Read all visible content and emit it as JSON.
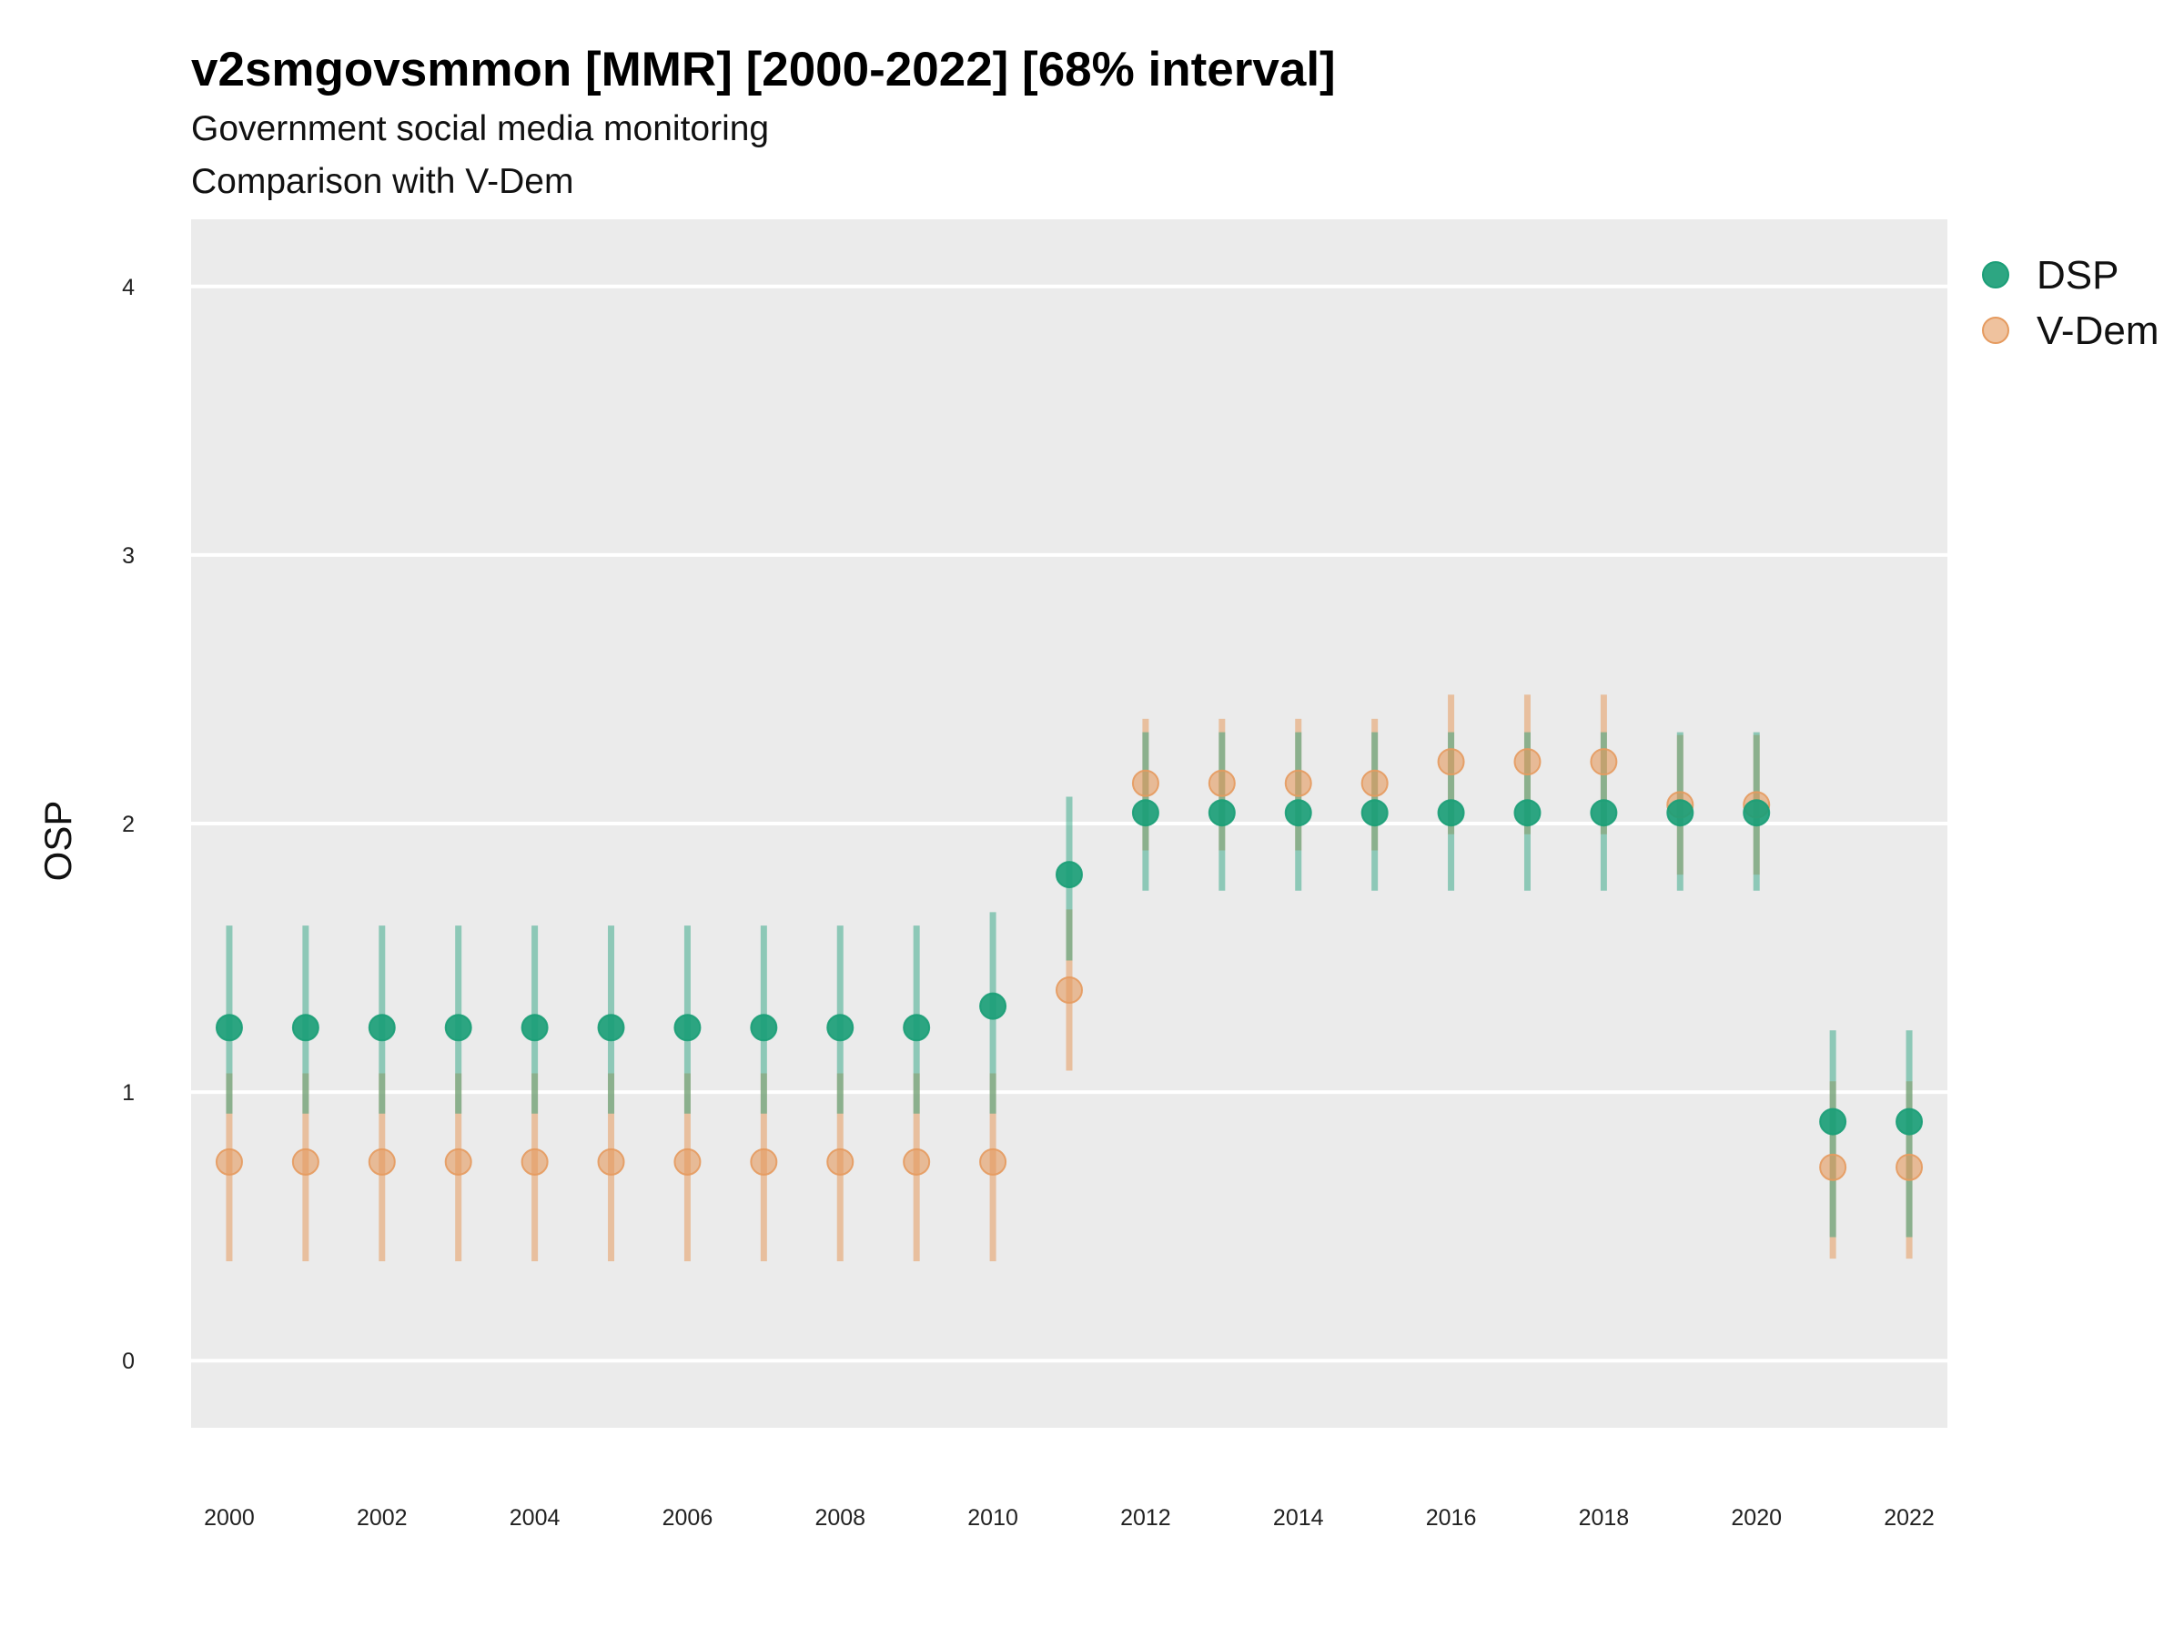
{
  "chart_data": {
    "type": "scatter",
    "title": "v2smgovsmmon [MMR] [2000-2022] [68% interval]",
    "subtitle_lines": [
      "Government social media monitoring",
      "Comparison with V-Dem"
    ],
    "ylabel": "OSP",
    "xlabel": "",
    "x_ticks": [
      "2000",
      "2002",
      "2004",
      "2006",
      "2008",
      "2010",
      "2012",
      "2014",
      "2016",
      "2018",
      "2020",
      "2022"
    ],
    "y_ticks": [
      "0",
      "1",
      "2",
      "3",
      "4"
    ],
    "xlim": [
      1999.5,
      2022.5
    ],
    "ylim": [
      -0.25,
      4.25
    ],
    "grid": true,
    "legend_position": "right",
    "x": [
      2000,
      2001,
      2002,
      2003,
      2004,
      2005,
      2006,
      2007,
      2008,
      2009,
      2010,
      2011,
      2012,
      2013,
      2014,
      2015,
      2016,
      2017,
      2018,
      2019,
      2020,
      2021,
      2022
    ],
    "series": [
      {
        "name": "DSP",
        "color": "#1b9e77",
        "values": [
          1.24,
          1.24,
          1.24,
          1.24,
          1.24,
          1.24,
          1.24,
          1.24,
          1.24,
          1.24,
          1.32,
          1.81,
          2.04,
          2.04,
          2.04,
          2.04,
          2.04,
          2.04,
          2.04,
          2.04,
          2.04,
          0.89,
          0.89
        ],
        "lower": [
          0.92,
          0.92,
          0.92,
          0.92,
          0.92,
          0.92,
          0.92,
          0.92,
          0.92,
          0.92,
          0.92,
          1.49,
          1.75,
          1.75,
          1.75,
          1.75,
          1.75,
          1.75,
          1.75,
          1.75,
          1.75,
          0.46,
          0.46
        ],
        "upper": [
          1.62,
          1.62,
          1.62,
          1.62,
          1.62,
          1.62,
          1.62,
          1.62,
          1.62,
          1.62,
          1.67,
          2.1,
          2.34,
          2.34,
          2.34,
          2.34,
          2.34,
          2.34,
          2.34,
          2.34,
          2.34,
          1.23,
          1.23
        ]
      },
      {
        "name": "V-Dem",
        "color": "#e59a5e",
        "values": [
          0.74,
          0.74,
          0.74,
          0.74,
          0.74,
          0.74,
          0.74,
          0.74,
          0.74,
          0.74,
          0.74,
          1.38,
          2.15,
          2.15,
          2.15,
          2.15,
          2.23,
          2.23,
          2.23,
          2.07,
          2.07,
          0.72,
          0.72
        ],
        "lower": [
          0.37,
          0.37,
          0.37,
          0.37,
          0.37,
          0.37,
          0.37,
          0.37,
          0.37,
          0.37,
          0.37,
          1.08,
          1.9,
          1.9,
          1.9,
          1.9,
          1.96,
          1.96,
          1.96,
          1.81,
          1.81,
          0.38,
          0.38
        ],
        "upper": [
          1.07,
          1.07,
          1.07,
          1.07,
          1.07,
          1.07,
          1.07,
          1.07,
          1.07,
          1.07,
          1.07,
          1.68,
          2.39,
          2.39,
          2.39,
          2.39,
          2.48,
          2.48,
          2.48,
          2.33,
          2.33,
          1.04,
          1.04
        ]
      }
    ]
  }
}
